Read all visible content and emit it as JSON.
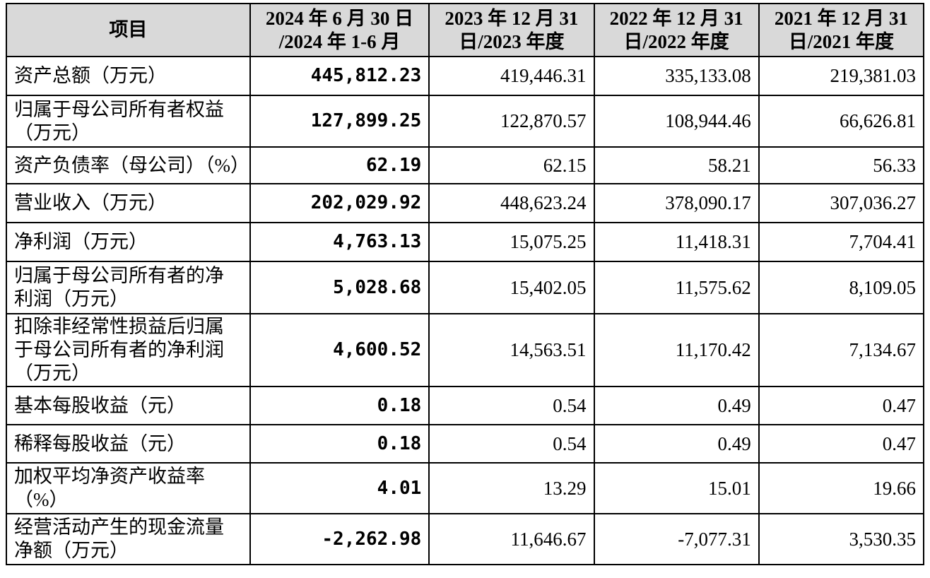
{
  "table": {
    "header": {
      "item": "项目",
      "periods": [
        {
          "line1": "2024 年 6 月 30 日",
          "line2": "/2024 年 1-6 月"
        },
        {
          "line1": "2023 年 12 月 31",
          "line2": "日/2023 年度"
        },
        {
          "line1": "2022 年 12 月 31",
          "line2": "日/2022 年度"
        },
        {
          "line1": "2021 年 12 月 31",
          "line2": "日/2021 年度"
        }
      ]
    },
    "rows": [
      {
        "label_lines": [
          "资产总额（万元）"
        ],
        "values": [
          "445,812.23",
          "419,446.31",
          "335,133.08",
          "219,381.03"
        ]
      },
      {
        "label_lines": [
          "归属于母公司所有者权益",
          "（万元）"
        ],
        "values": [
          "127,899.25",
          "122,870.57",
          "108,944.46",
          "66,626.81"
        ]
      },
      {
        "label_lines": [
          "资产负债率（母公司）（%）"
        ],
        "values": [
          "62.19",
          "62.15",
          "58.21",
          "56.33"
        ]
      },
      {
        "label_lines": [
          "营业收入（万元）"
        ],
        "values": [
          "202,029.92",
          "448,623.24",
          "378,090.17",
          "307,036.27"
        ]
      },
      {
        "label_lines": [
          "净利润（万元）"
        ],
        "values": [
          "4,763.13",
          "15,075.25",
          "11,418.31",
          "7,704.41"
        ]
      },
      {
        "label_lines": [
          "归属于母公司所有者的净",
          "利润（万元）"
        ],
        "values": [
          "5,028.68",
          "15,402.05",
          "11,575.62",
          "8,109.05"
        ]
      },
      {
        "label_lines": [
          "扣除非经常性损益后归属",
          "于母公司所有者的净利润",
          "（万元）"
        ],
        "values": [
          "4,600.52",
          "14,563.51",
          "11,170.42",
          "7,134.67"
        ]
      },
      {
        "label_lines": [
          "基本每股收益（元）"
        ],
        "values": [
          "0.18",
          "0.54",
          "0.49",
          "0.47"
        ]
      },
      {
        "label_lines": [
          "稀释每股收益（元）"
        ],
        "values": [
          "0.18",
          "0.54",
          "0.49",
          "0.47"
        ]
      },
      {
        "label_lines": [
          "加权平均净资产收益率",
          "（%）"
        ],
        "values": [
          "4.01",
          "13.29",
          "15.01",
          "19.66"
        ]
      },
      {
        "label_lines": [
          "经营活动产生的现金流量",
          "净额（万元）"
        ],
        "values": [
          "-2,262.98",
          "11,646.67",
          "-7,077.31",
          "3,530.35"
        ]
      }
    ]
  }
}
